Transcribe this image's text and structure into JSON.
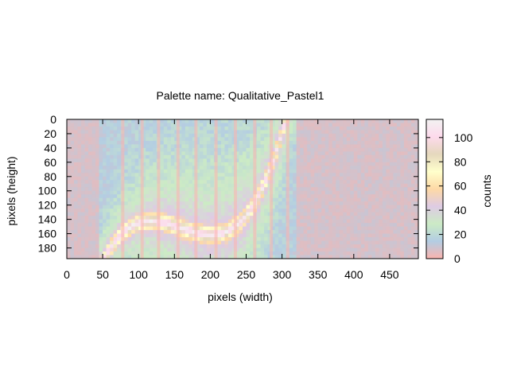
{
  "chart_data": {
    "type": "heatmap",
    "title": "Palette name: Qualitative_Pastel1",
    "xlabel": "pixels (width)",
    "ylabel": "pixels (height)",
    "colorbar_label": "counts",
    "xlim": [
      0,
      490
    ],
    "ylim": [
      0,
      195
    ],
    "y_inverted": true,
    "x_ticks": [
      0,
      50,
      100,
      150,
      200,
      250,
      300,
      350,
      400,
      450
    ],
    "y_ticks": [
      0,
      20,
      40,
      60,
      80,
      100,
      120,
      140,
      160,
      180
    ],
    "colorbar_range": [
      0,
      115
    ],
    "colorbar_ticks": [
      0,
      20,
      40,
      60,
      80,
      100
    ],
    "palette": [
      "#fbb4ae",
      "#b3cde3",
      "#ccebc5",
      "#decbe4",
      "#fed9a6",
      "#ffffcc",
      "#e5d8bd",
      "#fddaec",
      "#f2f2f2"
    ],
    "grid": false,
    "legend": "colorbar-right"
  }
}
